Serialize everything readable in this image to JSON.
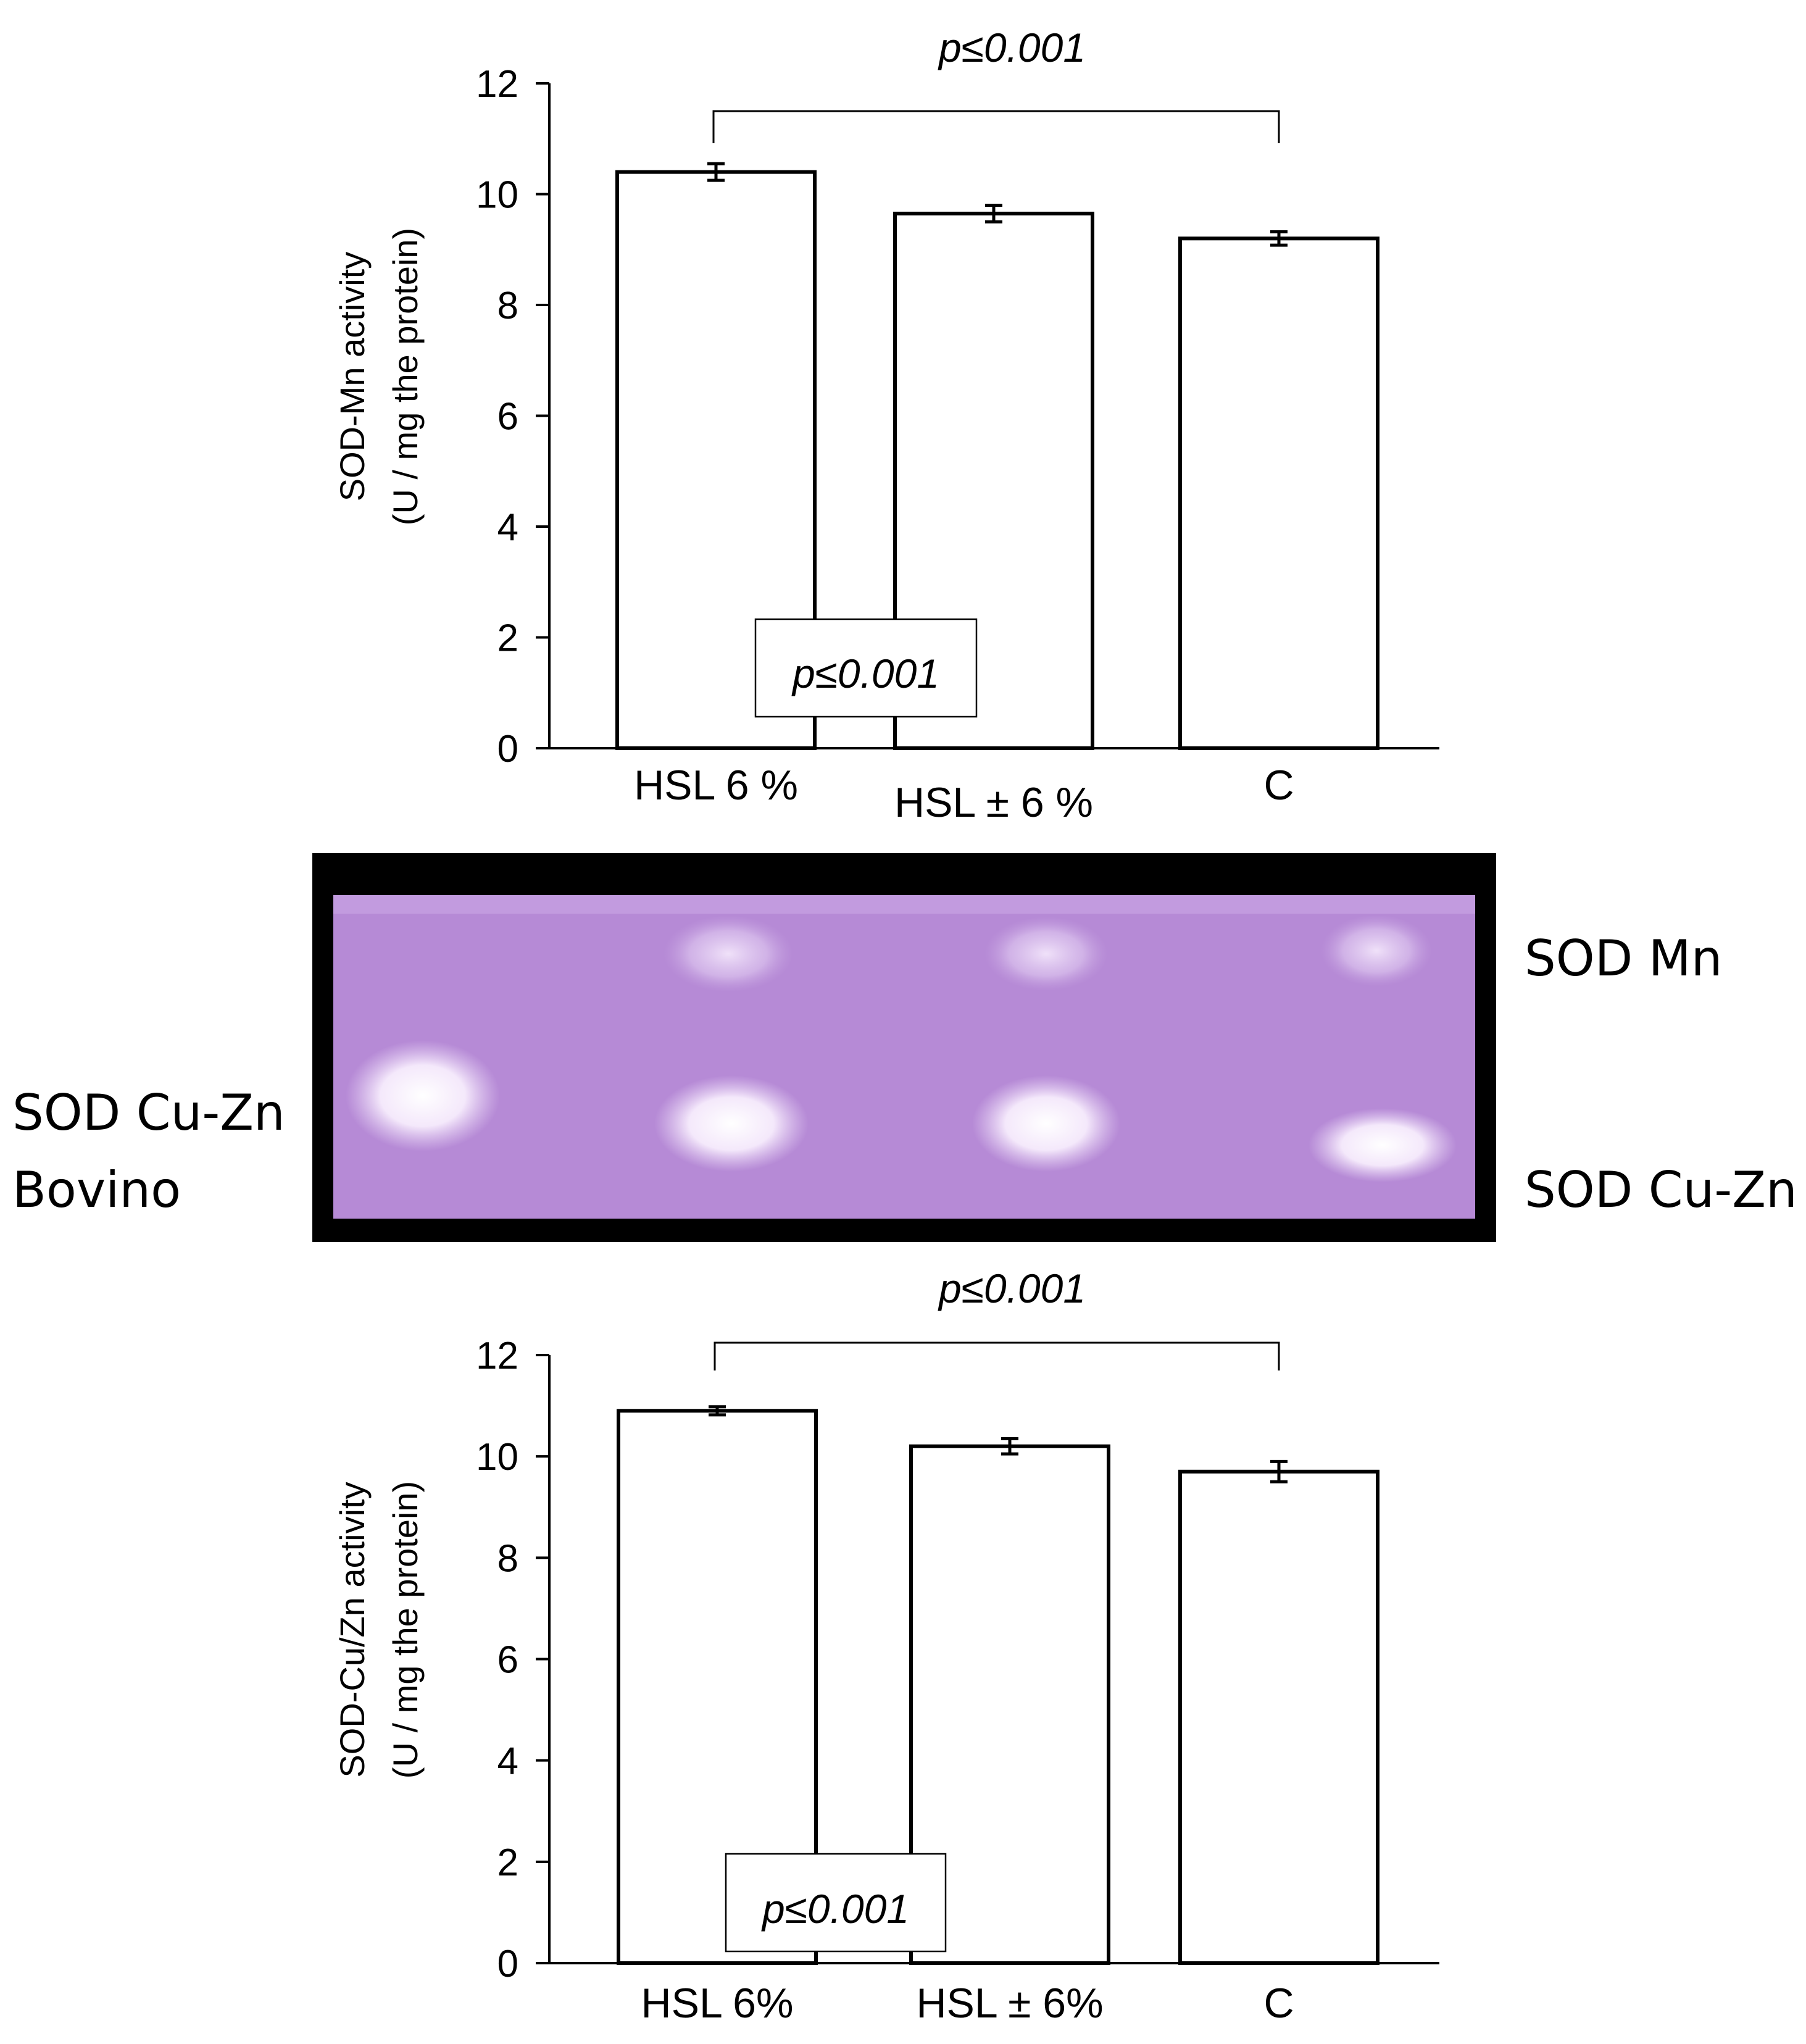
{
  "chart_data": [
    {
      "type": "bar",
      "categories": [
        "HSL 6 %",
        "HSL ± 6 %",
        "C"
      ],
      "values": [
        10.4,
        9.65,
        9.2
      ],
      "errors": [
        0.15,
        0.15,
        0.12
      ],
      "ylabel_line1": "SOD-Mn activity",
      "ylabel_line2": "(U / mg the protein)",
      "ylim": [
        0,
        12
      ],
      "yticks": [
        0,
        2,
        4,
        6,
        8,
        10,
        12
      ],
      "bracket": {
        "from": "HSL 6 %",
        "to": "C",
        "label": "p≤0.001"
      },
      "boxed_annotation": "p≤0.001",
      "bar_fill": "#ffffff",
      "stroke": "#000000"
    },
    {
      "type": "bar",
      "categories": [
        "HSL 6%",
        "HSL ± 6%",
        "C"
      ],
      "values": [
        10.9,
        10.2,
        9.7
      ],
      "errors": [
        0.08,
        0.15,
        0.2
      ],
      "ylabel_line1": "SOD-Cu/Zn activity",
      "ylabel_line2": "(U / mg the protein)",
      "ylim": [
        0,
        12
      ],
      "yticks": [
        0,
        2,
        4,
        6,
        8,
        10,
        12
      ],
      "bracket": {
        "from": "HSL 6%",
        "to": "C",
        "label": "p≤0.001"
      },
      "boxed_annotation": "p≤0.001",
      "bar_fill": "#ffffff",
      "stroke": "#000000"
    }
  ],
  "gel": {
    "left_label_line1": "SOD Cu-Zn",
    "left_label_line2": "Bovino",
    "right_label_top": "SOD Mn",
    "right_label_bottom": "SOD Cu-Zn",
    "gel_color": "#b68ad6",
    "frame_color": "#000000"
  }
}
